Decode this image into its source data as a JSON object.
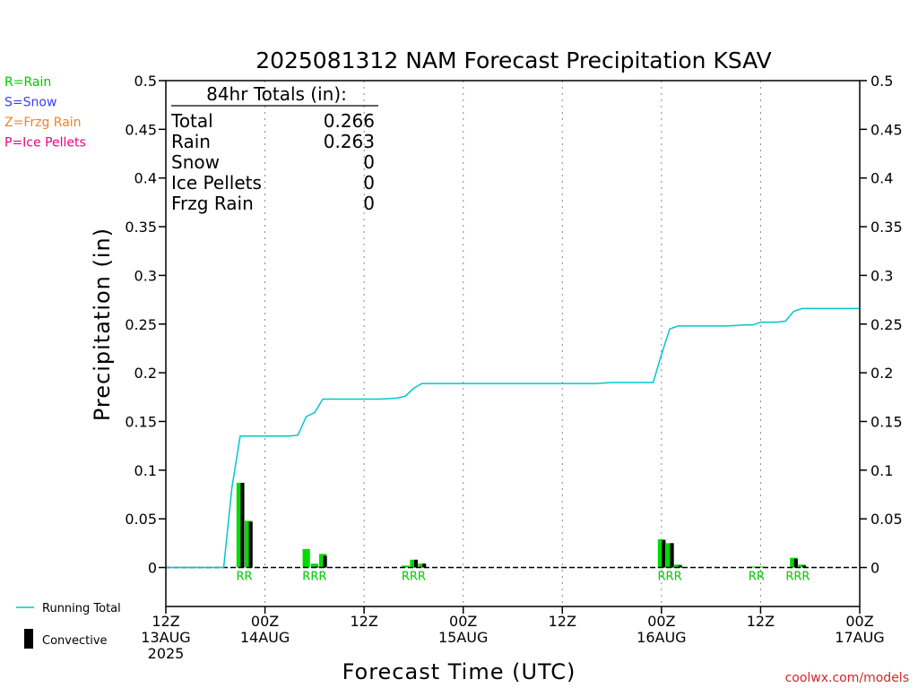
{
  "chart_data": {
    "type": "bar",
    "title": "2025081312 NAM Forecast Precipitation KSAV",
    "ylabel": "Precipitation  (in)",
    "xlabel": "Forecast Time (UTC)",
    "ylim": [
      -0.04,
      0.5
    ],
    "xlim": [
      0,
      84
    ],
    "y_ticks": [
      0,
      0.05,
      0.1,
      0.15,
      0.2,
      0.25,
      0.3,
      0.35,
      0.4,
      0.45,
      0.5
    ],
    "y_tick_labels": [
      "0",
      "0.05",
      "0.1",
      "0.15",
      "0.2",
      "0.25",
      "0.3",
      "0.35",
      "0.4",
      "0.45",
      "0.5"
    ],
    "x_ticks": [
      {
        "hour": 0,
        "lines": [
          "12Z",
          "13AUG",
          "2025"
        ]
      },
      {
        "hour": 12,
        "lines": [
          "00Z",
          "14AUG"
        ]
      },
      {
        "hour": 24,
        "lines": [
          "12Z"
        ]
      },
      {
        "hour": 36,
        "lines": [
          "00Z",
          "15AUG"
        ]
      },
      {
        "hour": 48,
        "lines": [
          "12Z"
        ]
      },
      {
        "hour": 60,
        "lines": [
          "00Z",
          "16AUG"
        ]
      },
      {
        "hour": 72,
        "lines": [
          "12Z"
        ]
      },
      {
        "hour": 84,
        "lines": [
          "00Z",
          "17AUG"
        ]
      }
    ],
    "grid": "vertical dotted",
    "bars": [
      {
        "hour": 9,
        "total": 0.087,
        "convective": 0.087
      },
      {
        "hour": 10,
        "total": 0.048,
        "convective": 0.047
      },
      {
        "hour": 17,
        "total": 0.019,
        "convective": 0.0
      },
      {
        "hour": 18,
        "total": 0.004,
        "convective": 0.001
      },
      {
        "hour": 19,
        "total": 0.014,
        "convective": 0.012
      },
      {
        "hour": 29,
        "total": 0.002,
        "convective": 0.0
      },
      {
        "hour": 30,
        "total": 0.008,
        "convective": 0.008
      },
      {
        "hour": 31,
        "total": 0.004,
        "convective": 0.004
      },
      {
        "hour": 60,
        "total": 0.029,
        "convective": 0.028
      },
      {
        "hour": 61,
        "total": 0.025,
        "convective": 0.025
      },
      {
        "hour": 62,
        "total": 0.003,
        "convective": 0.002
      },
      {
        "hour": 71,
        "total": 0.001,
        "convective": 0.0
      },
      {
        "hour": 72,
        "total": 0.001,
        "convective": 0.0
      },
      {
        "hour": 76,
        "total": 0.01,
        "convective": 0.009
      },
      {
        "hour": 77,
        "total": 0.003,
        "convective": 0.002
      }
    ],
    "running_total": {
      "name": "Running Total",
      "points": [
        [
          0,
          0
        ],
        [
          7,
          0
        ],
        [
          8,
          0.082
        ],
        [
          9,
          0.135
        ],
        [
          10,
          0.135
        ],
        [
          11,
          0.135
        ],
        [
          12,
          0.135
        ],
        [
          13,
          0.135
        ],
        [
          14,
          0.135
        ],
        [
          15,
          0.135
        ],
        [
          16,
          0.136
        ],
        [
          17,
          0.155
        ],
        [
          18,
          0.159
        ],
        [
          19,
          0.173
        ],
        [
          20,
          0.173
        ],
        [
          22,
          0.173
        ],
        [
          24,
          0.173
        ],
        [
          26,
          0.173
        ],
        [
          28,
          0.174
        ],
        [
          29,
          0.176
        ],
        [
          30,
          0.184
        ],
        [
          31,
          0.189
        ],
        [
          34,
          0.189
        ],
        [
          40,
          0.189
        ],
        [
          46,
          0.189
        ],
        [
          52,
          0.189
        ],
        [
          54,
          0.19
        ],
        [
          58,
          0.19
        ],
        [
          59,
          0.19
        ],
        [
          60,
          0.219
        ],
        [
          61,
          0.245
        ],
        [
          62,
          0.248
        ],
        [
          64,
          0.248
        ],
        [
          68,
          0.248
        ],
        [
          70,
          0.249
        ],
        [
          71,
          0.249
        ],
        [
          72,
          0.252
        ],
        [
          74,
          0.252
        ],
        [
          75,
          0.253
        ],
        [
          76,
          0.263
        ],
        [
          77,
          0.266
        ],
        [
          84,
          0.266
        ]
      ]
    },
    "ptype_labels": [
      {
        "hour": 9.5,
        "text": "RR"
      },
      {
        "hour": 18,
        "text": "RRR"
      },
      {
        "hour": 30,
        "text": "RRR"
      },
      {
        "hour": 61,
        "text": "RRR"
      },
      {
        "hour": 71.5,
        "text": "RR"
      },
      {
        "hour": 76.5,
        "text": "RRR"
      }
    ],
    "totals_box": {
      "heading": "84hr Totals (in):",
      "rows": [
        {
          "label": "Total",
          "value": "0.266"
        },
        {
          "label": "Rain",
          "value": "0.263"
        },
        {
          "label": "Snow",
          "value": "0"
        },
        {
          "label": "Ice Pellets",
          "value": "0"
        },
        {
          "label": "Frzg Rain",
          "value": "0"
        }
      ]
    },
    "ptype_legend": [
      {
        "text": "R=Rain",
        "color": "#00c800"
      },
      {
        "text": "S=Snow",
        "color": "#3c3cff"
      },
      {
        "text": "Z=Frzg Rain",
        "color": "#f08228"
      },
      {
        "text": "P=Ice Pellets",
        "color": "#f00082"
      }
    ],
    "series_legend": [
      {
        "text": "Running Total",
        "type": "line",
        "color": "#00c8c8"
      },
      {
        "text": "Convective",
        "type": "bar",
        "color": "#000000"
      }
    ],
    "colors": {
      "bar_total": "#00dc00",
      "bar_convective": "#000000",
      "running_total": "#00c8c8",
      "ptype_rain": "#00c800"
    },
    "credit": "coolwx.com/models"
  }
}
